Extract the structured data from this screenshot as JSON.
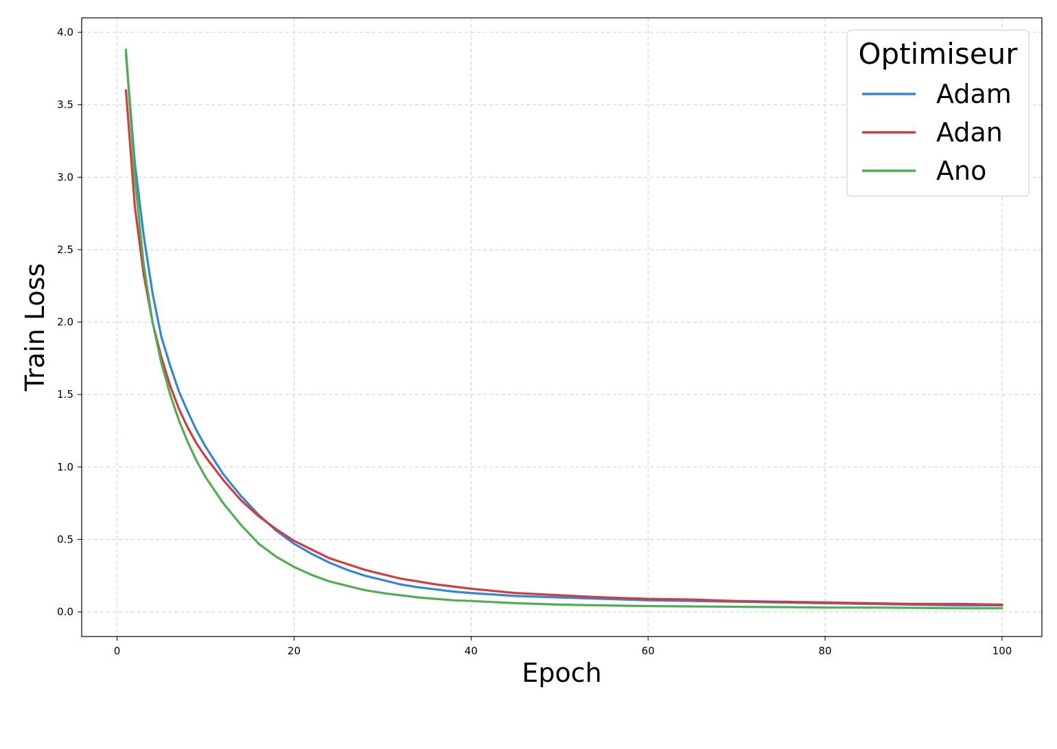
{
  "chart_data": {
    "type": "line",
    "title": "",
    "xlabel": "Epoch",
    "ylabel": "Train Loss",
    "xlim": [
      -4,
      104.5
    ],
    "ylim": [
      -0.17,
      4.1
    ],
    "xticks": [
      0,
      20,
      40,
      60,
      80,
      100
    ],
    "yticks": [
      0.0,
      0.5,
      1.0,
      1.5,
      2.0,
      2.5,
      3.0,
      3.5,
      4.0
    ],
    "xtick_labels": [
      "0",
      "20",
      "40",
      "60",
      "80",
      "100"
    ],
    "ytick_labels": [
      "0.0",
      "0.5",
      "1.0",
      "1.5",
      "2.0",
      "2.5",
      "3.0",
      "3.5",
      "4.0"
    ],
    "grid": true,
    "legend": {
      "title": "Optimiseur",
      "location": "top-right"
    },
    "series": [
      {
        "name": "Adam",
        "color": "#2e86de",
        "x": [
          1,
          2,
          3,
          4,
          5,
          6,
          7,
          8,
          9,
          10,
          12,
          14,
          16,
          18,
          20,
          22,
          24,
          26,
          28,
          30,
          32,
          34,
          36,
          38,
          40,
          45,
          50,
          55,
          60,
          65,
          70,
          75,
          80,
          85,
          90,
          95,
          100
        ],
        "y": [
          3.85,
          3.1,
          2.6,
          2.2,
          1.9,
          1.7,
          1.52,
          1.38,
          1.25,
          1.14,
          0.95,
          0.8,
          0.67,
          0.56,
          0.47,
          0.4,
          0.34,
          0.29,
          0.25,
          0.22,
          0.19,
          0.17,
          0.155,
          0.14,
          0.13,
          0.11,
          0.1,
          0.09,
          0.08,
          0.075,
          0.07,
          0.065,
          0.06,
          0.055,
          0.05,
          0.045,
          0.045
        ]
      },
      {
        "name": "Adan",
        "color": "#d63b3b",
        "x": [
          1,
          2,
          3,
          4,
          5,
          6,
          7,
          8,
          9,
          10,
          12,
          14,
          16,
          18,
          20,
          22,
          24,
          26,
          28,
          30,
          32,
          34,
          36,
          38,
          40,
          45,
          50,
          55,
          60,
          65,
          70,
          75,
          80,
          85,
          90,
          95,
          100
        ],
        "y": [
          3.6,
          2.8,
          2.33,
          2.0,
          1.76,
          1.56,
          1.4,
          1.27,
          1.16,
          1.07,
          0.91,
          0.77,
          0.66,
          0.57,
          0.49,
          0.43,
          0.37,
          0.33,
          0.29,
          0.26,
          0.23,
          0.21,
          0.19,
          0.175,
          0.16,
          0.13,
          0.115,
          0.1,
          0.09,
          0.085,
          0.075,
          0.07,
          0.065,
          0.06,
          0.055,
          0.055,
          0.05
        ]
      },
      {
        "name": "Ano",
        "color": "#4caf50",
        "x": [
          1,
          2,
          3,
          4,
          5,
          6,
          7,
          8,
          9,
          10,
          12,
          14,
          16,
          18,
          20,
          22,
          24,
          26,
          28,
          30,
          32,
          34,
          36,
          38,
          40,
          45,
          50,
          55,
          60,
          65,
          70,
          75,
          80,
          85,
          90,
          95,
          100
        ],
        "y": [
          3.88,
          3.0,
          2.4,
          2.0,
          1.72,
          1.5,
          1.32,
          1.17,
          1.04,
          0.93,
          0.75,
          0.6,
          0.47,
          0.38,
          0.31,
          0.255,
          0.21,
          0.18,
          0.15,
          0.13,
          0.115,
          0.1,
          0.09,
          0.08,
          0.075,
          0.06,
          0.05,
          0.045,
          0.04,
          0.038,
          0.035,
          0.033,
          0.03,
          0.03,
          0.028,
          0.025,
          0.025
        ]
      }
    ]
  }
}
